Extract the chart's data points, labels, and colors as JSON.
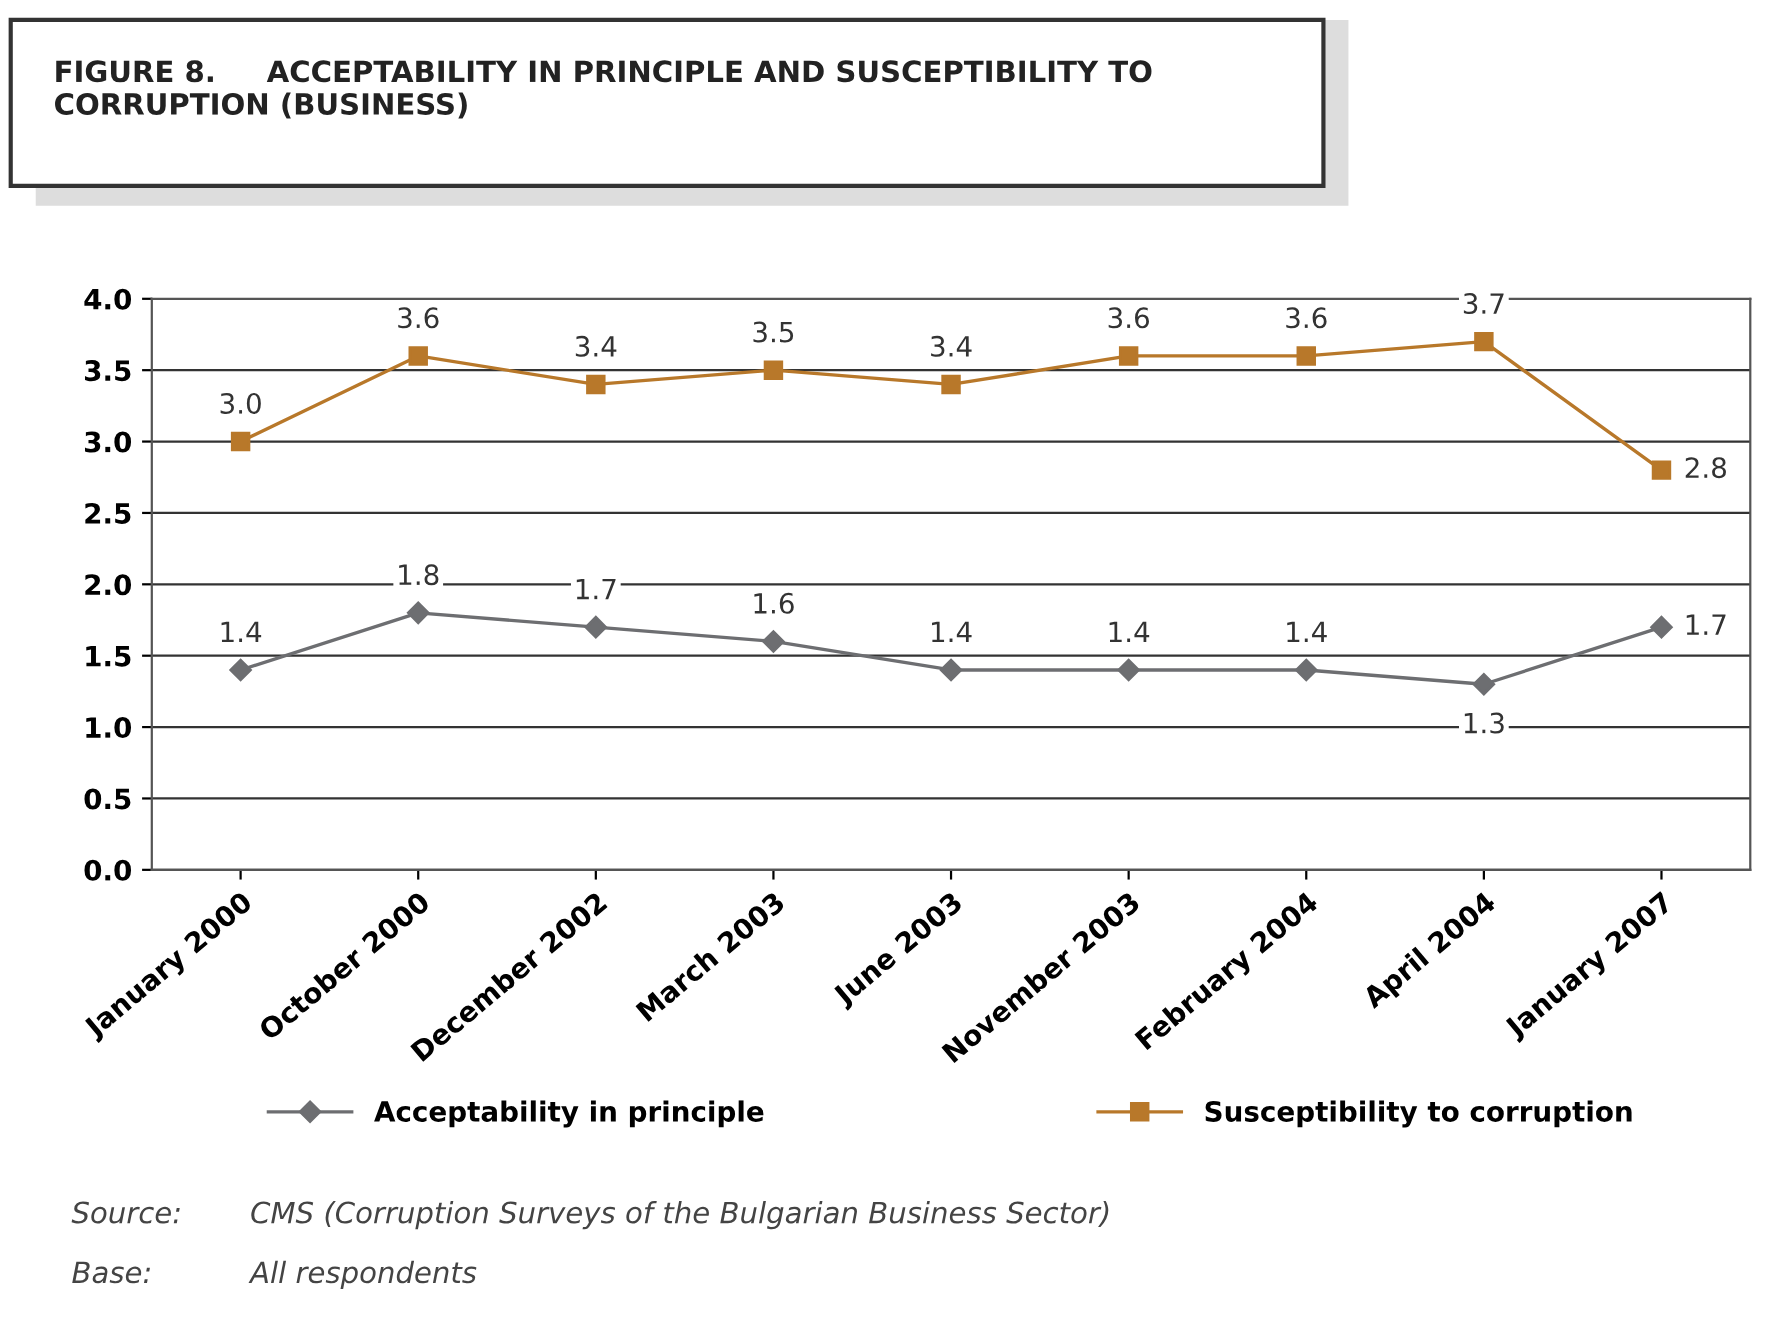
{
  "chart_data": {
    "type": "line",
    "title": "FIGURE 8.     ACCEPTABILITY IN PRINCIPLE AND SUSCEPTIBILITY TO CORRUPTION (BUSINESS)",
    "categories": [
      "January 2000",
      "October 2000",
      "December 2002",
      "March 2003",
      "June 2003",
      "November 2003",
      "February 2004",
      "April 2004",
      "January 2007"
    ],
    "series": [
      {
        "name": "Acceptability in principle",
        "color": "#6d6e71",
        "marker": "diamond",
        "values": [
          1.4,
          1.8,
          1.7,
          1.6,
          1.4,
          1.4,
          1.4,
          1.3,
          1.7
        ],
        "value_labels": [
          "1.4",
          "1.8",
          "1.7",
          "1.6",
          "1.4",
          "1.4",
          "1.4",
          "1.3",
          "1.7"
        ]
      },
      {
        "name": "Susceptibility to corruption",
        "color": "#b8782a",
        "marker": "square",
        "values": [
          3.0,
          3.6,
          3.4,
          3.5,
          3.4,
          3.6,
          3.6,
          3.7,
          2.8
        ],
        "value_labels": [
          "3.0",
          "3.6",
          "3.4",
          "3.5",
          "3.4",
          "3.6",
          "3.6",
          "3.7",
          "2.8"
        ]
      }
    ],
    "ylim": [
      0,
      4
    ],
    "yticks": [
      {
        "value": 0,
        "label": "0.0"
      },
      {
        "value": 0.5,
        "label": "0.5"
      },
      {
        "value": 1,
        "label": "1.0"
      },
      {
        "value": 1.5,
        "label": "1.5"
      },
      {
        "value": 2,
        "label": "2.0"
      },
      {
        "value": 2.5,
        "label": "2.5"
      },
      {
        "value": 3,
        "label": "3.0"
      },
      {
        "value": 3.5,
        "label": "3.5"
      },
      {
        "value": 4,
        "label": "4.0"
      }
    ],
    "grid": "y",
    "legend": "bottom",
    "annotations": [
      "Source:",
      "CMS (Corruption Surveys of the Bulgarian Business Sector)",
      "Base:",
      "All respondents"
    ]
  }
}
